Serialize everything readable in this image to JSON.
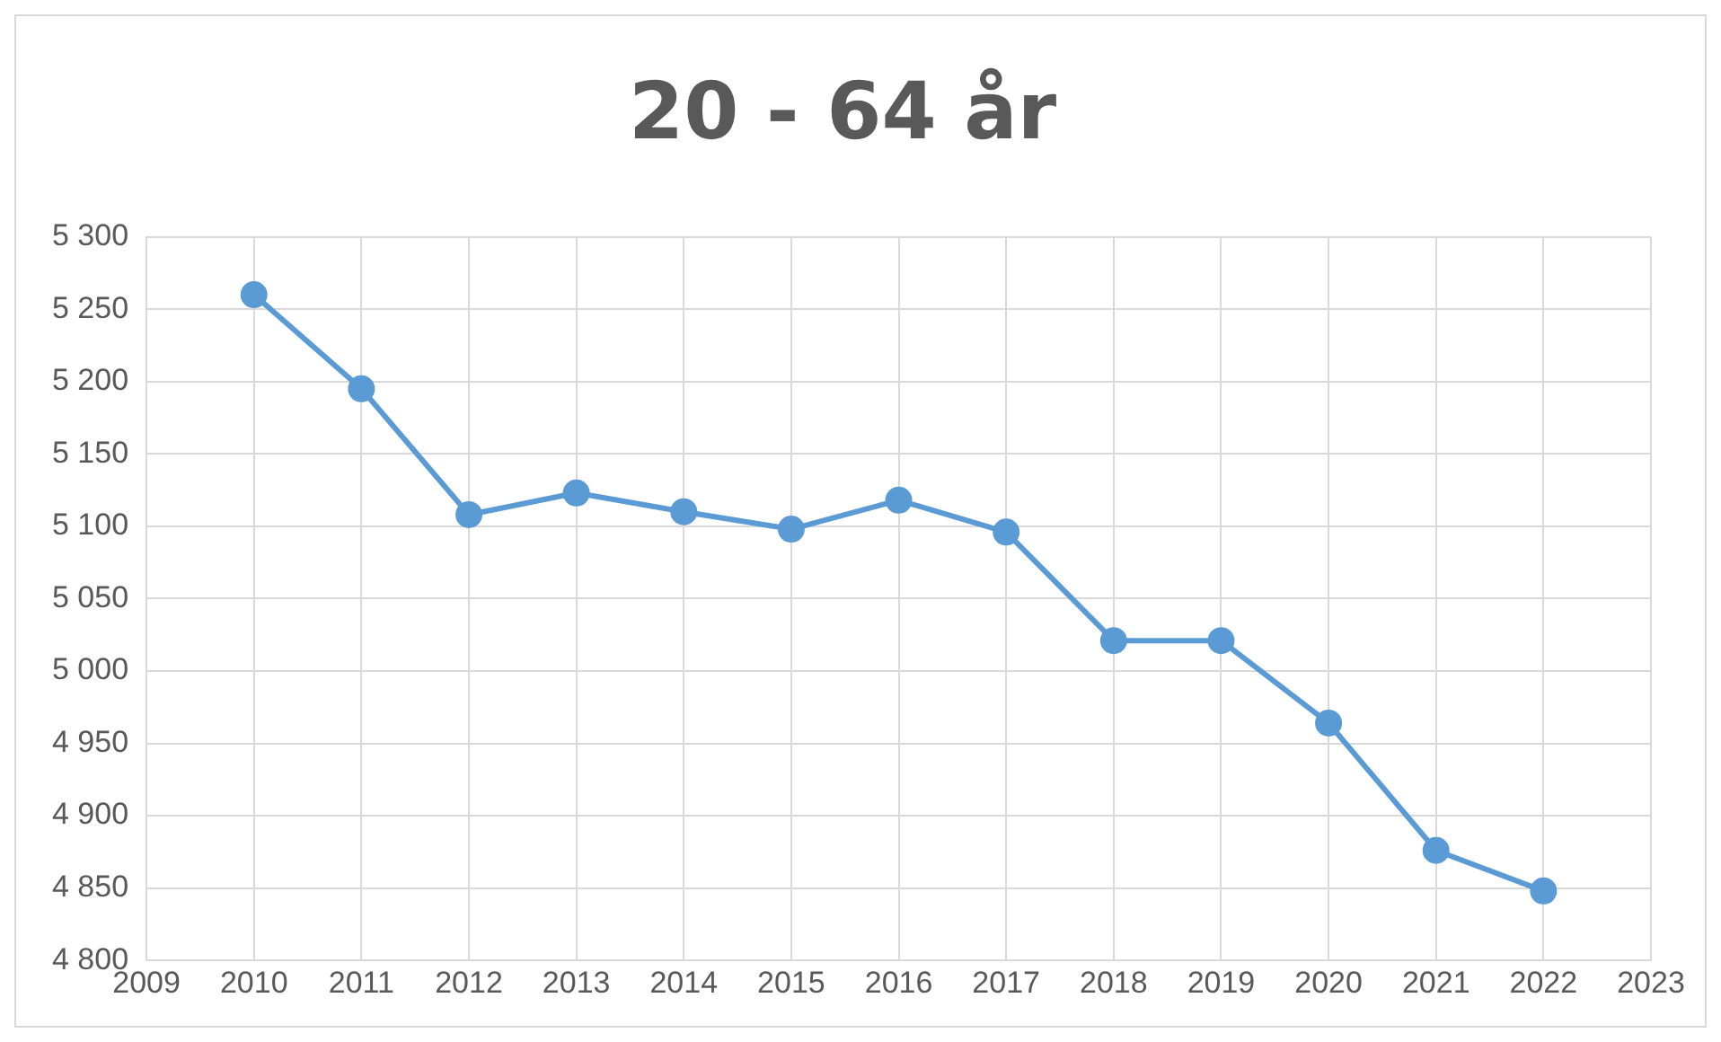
{
  "chart_data": {
    "type": "line",
    "title": "20 - 64 år",
    "x": [
      2010,
      2011,
      2012,
      2013,
      2014,
      2015,
      2016,
      2017,
      2018,
      2019,
      2020,
      2021,
      2022
    ],
    "series": [
      {
        "color": "#5b9bd5",
        "values": [
          5260,
          5195,
          5108,
          5123,
          5110,
          5098,
          5118,
          5096,
          5021,
          5021,
          4964,
          4876,
          4848
        ]
      }
    ],
    "xlim": [
      2009,
      2023
    ],
    "xticks": [
      2009,
      2010,
      2011,
      2012,
      2013,
      2014,
      2015,
      2016,
      2017,
      2018,
      2019,
      2020,
      2021,
      2022,
      2023
    ],
    "ylim": [
      4800,
      5300
    ],
    "yticks": [
      {
        "value": 4800,
        "label": "4 800"
      },
      {
        "value": 4850,
        "label": "4 850"
      },
      {
        "value": 4900,
        "label": "4 900"
      },
      {
        "value": 4950,
        "label": "4 950"
      },
      {
        "value": 5000,
        "label": "5 000"
      },
      {
        "value": 5050,
        "label": "5 050"
      },
      {
        "value": 5100,
        "label": "5 100"
      },
      {
        "value": 5150,
        "label": "5 150"
      },
      {
        "value": 5200,
        "label": "5 200"
      },
      {
        "value": 5250,
        "label": "5 250"
      },
      {
        "value": 5300,
        "label": "5 300"
      }
    ],
    "grid": true,
    "marker": "circle",
    "line_style": "solid",
    "legend": false
  }
}
